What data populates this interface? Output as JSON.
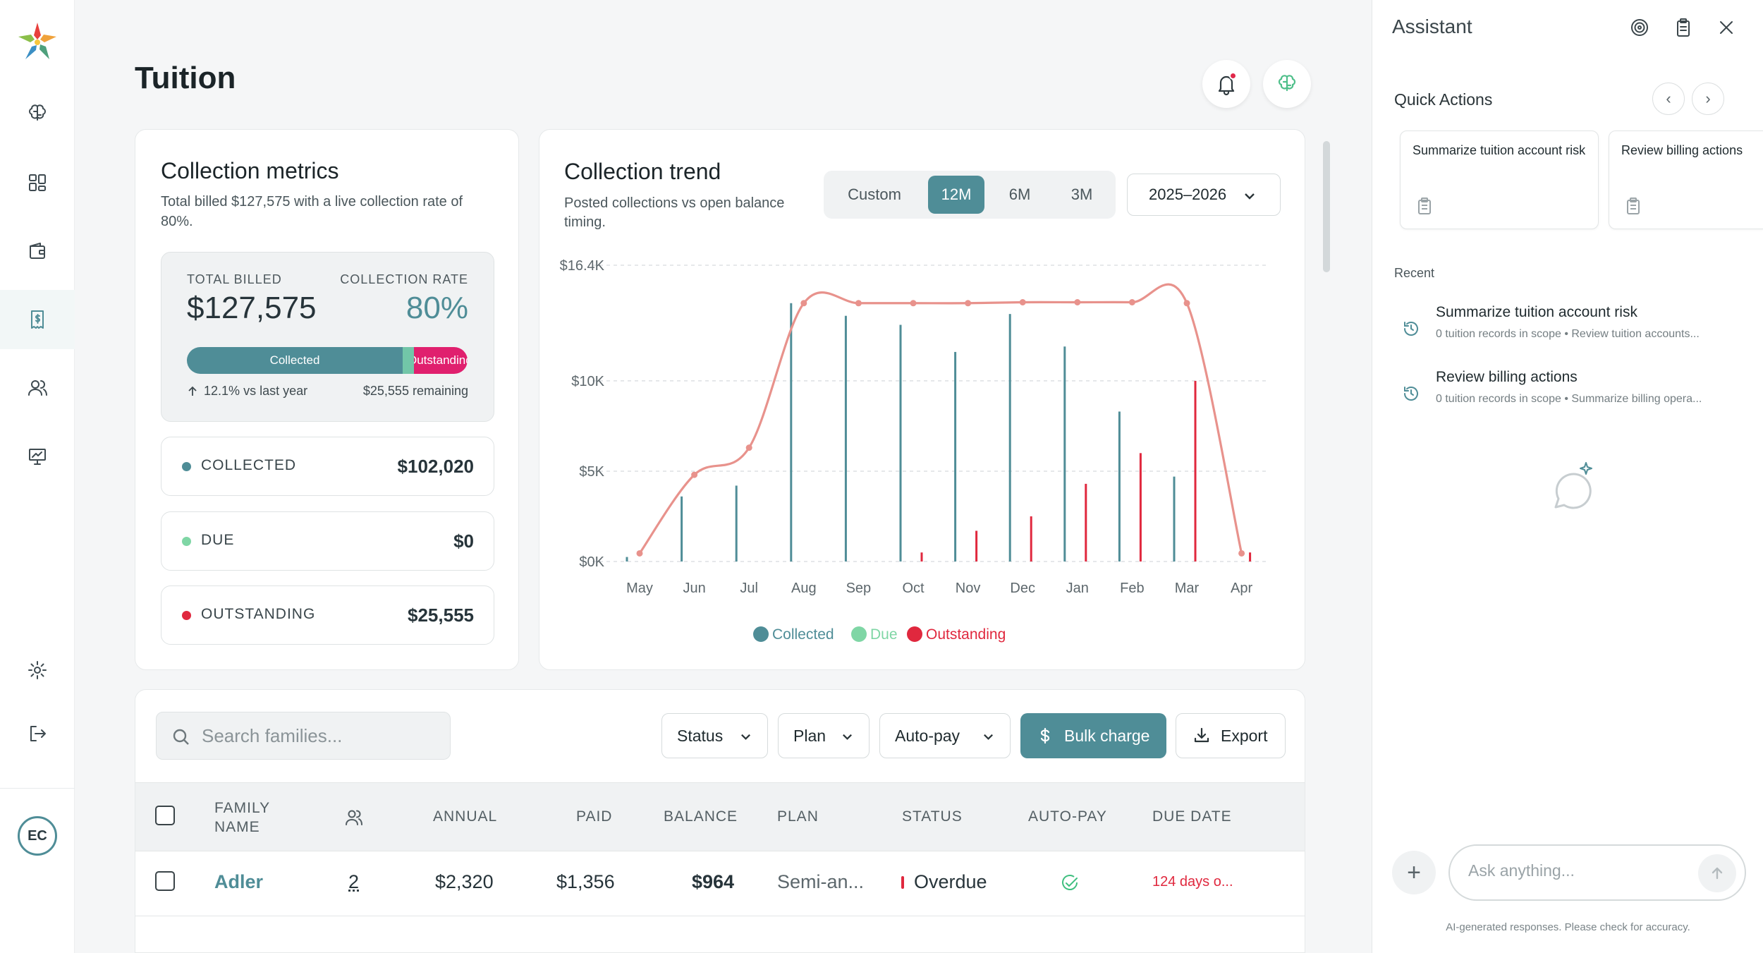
{
  "header": {
    "title": "Tuition"
  },
  "nav": {
    "items": [
      "brain-icon",
      "dashboard-icon",
      "wallet-icon",
      "tuition-icon",
      "users-icon",
      "presentation-icon",
      "settings-icon",
      "logout-icon"
    ],
    "avatar_initials": "EC"
  },
  "metrics": {
    "title": "Collection metrics",
    "subtitle": "Total billed $127,575 with a live collection rate of 80%.",
    "total_billed_label": "TOTAL BILLED",
    "total_billed": "$127,575",
    "collection_rate_label": "COLLECTION RATE",
    "collection_rate": "80%",
    "bar_collected_label": "Collected",
    "bar_outstanding_label": "Outstanding",
    "bar_fraction": {
      "collected": 0.8,
      "due": 0.0,
      "outstanding": 0.2
    },
    "change": "12.1%",
    "change_suffix": "vs last year",
    "remaining": "$25,555 remaining",
    "rows": [
      {
        "label": "COLLECTED",
        "value": "$102,020",
        "color": "#4f8d97"
      },
      {
        "label": "DUE",
        "value": "$0",
        "color": "#7fd6a5"
      },
      {
        "label": "OUTSTANDING",
        "value": "$25,555",
        "color": "#e0283e"
      }
    ]
  },
  "trend": {
    "title": "Collection trend",
    "subtitle_line1": "Posted collections vs open balance",
    "subtitle_line2": "timing.",
    "ranges": [
      "Custom",
      "12M",
      "6M",
      "3M"
    ],
    "active_range": "12M",
    "year": "2025–2026"
  },
  "chart_data": {
    "type": "bar",
    "categories": [
      "May",
      "Jun",
      "Jul",
      "Aug",
      "Sep",
      "Oct",
      "Nov",
      "Dec",
      "Jan",
      "Feb",
      "Mar",
      "Apr"
    ],
    "y_ticks": [
      "$0K",
      "$5K",
      "$10K",
      "$16.4K"
    ],
    "ylim": [
      0,
      16400
    ],
    "legend": [
      "Collected",
      "Due",
      "Outstanding"
    ],
    "colors": {
      "Collected": "#4f8d97",
      "Due": "#7fd6a5",
      "Outstanding": "#e0283e",
      "line": "#e8928c"
    },
    "series": [
      {
        "name": "Collected",
        "values": [
          250,
          3600,
          4200,
          14300,
          13600,
          13100,
          11600,
          13700,
          11900,
          8300,
          4700,
          0
        ]
      },
      {
        "name": "Due",
        "values": [
          0,
          0,
          0,
          0,
          0,
          0,
          0,
          0,
          0,
          0,
          0,
          0
        ]
      },
      {
        "name": "Outstanding",
        "values": [
          0,
          0,
          0,
          0,
          0,
          500,
          1700,
          2500,
          4300,
          6000,
          10000,
          500
        ]
      }
    ],
    "line_values": [
      450,
      4800,
      6300,
      14300,
      14300,
      14300,
      14300,
      14350,
      14350,
      14350,
      14300,
      450
    ]
  },
  "table": {
    "search_placeholder": "Search families...",
    "filters": [
      "Status",
      "Plan",
      "Auto-pay"
    ],
    "bulk_charge": "Bulk charge",
    "export": "Export",
    "columns": {
      "family_name_line1": "FAMILY",
      "family_name_line2": "NAME",
      "annual": "ANNUAL",
      "paid": "PAID",
      "balance": "BALANCE",
      "plan": "PLAN",
      "status": "STATUS",
      "autopay": "AUTO-PAY",
      "due_date": "DUE DATE"
    },
    "rows": [
      {
        "family": "Adler",
        "students": "2",
        "annual": "$2,320",
        "paid": "$1,356",
        "balance": "$964",
        "plan": "Semi-an...",
        "status": "Overdue",
        "due_date": "124 days o..."
      }
    ]
  },
  "assistant": {
    "title": "Assistant",
    "quick_actions_title": "Quick Actions",
    "quick_actions": [
      "Summarize tuition account risk",
      "Review billing actions"
    ],
    "recent_title": "Recent",
    "recent": [
      {
        "title": "Summarize tuition account risk",
        "subtitle": "0 tuition records in scope • Review tuition accounts..."
      },
      {
        "title": "Review billing actions",
        "subtitle": "0 tuition records in scope • Summarize billing opera..."
      }
    ],
    "input_placeholder": "Ask anything...",
    "disclaimer": "AI-generated responses. Please check for accuracy."
  }
}
